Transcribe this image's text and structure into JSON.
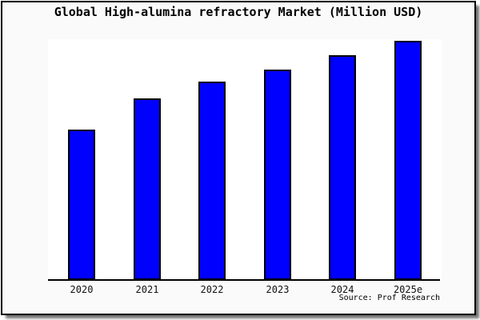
{
  "window": {
    "background": "#fafafa",
    "border_color": "#000000",
    "plot_background": "#ffffff"
  },
  "chart": {
    "title": "Global High-alumina refractory Market (Million USD)",
    "source": "Source: Prof Research",
    "bar_fill_color": "#0000fe",
    "bar_border_color": "#000000",
    "axis_color": "#000000"
  },
  "chart_data": {
    "type": "bar",
    "title": "Global High-alumina refractory Market (Million USD)",
    "categories": [
      "2020",
      "2021",
      "2022",
      "2023",
      "2024",
      "2025e"
    ],
    "values": [
      63,
      76,
      83,
      88,
      94,
      100
    ],
    "values_note": "No y-axis or data labels shown; values are estimated relative bar heights as percent of the tallest bar (2025e = 100).",
    "xlabel": "",
    "ylabel": "",
    "ylim": [
      0,
      100
    ],
    "grid": false,
    "legend": false,
    "annotations": [
      "Source: Prof Research"
    ]
  }
}
